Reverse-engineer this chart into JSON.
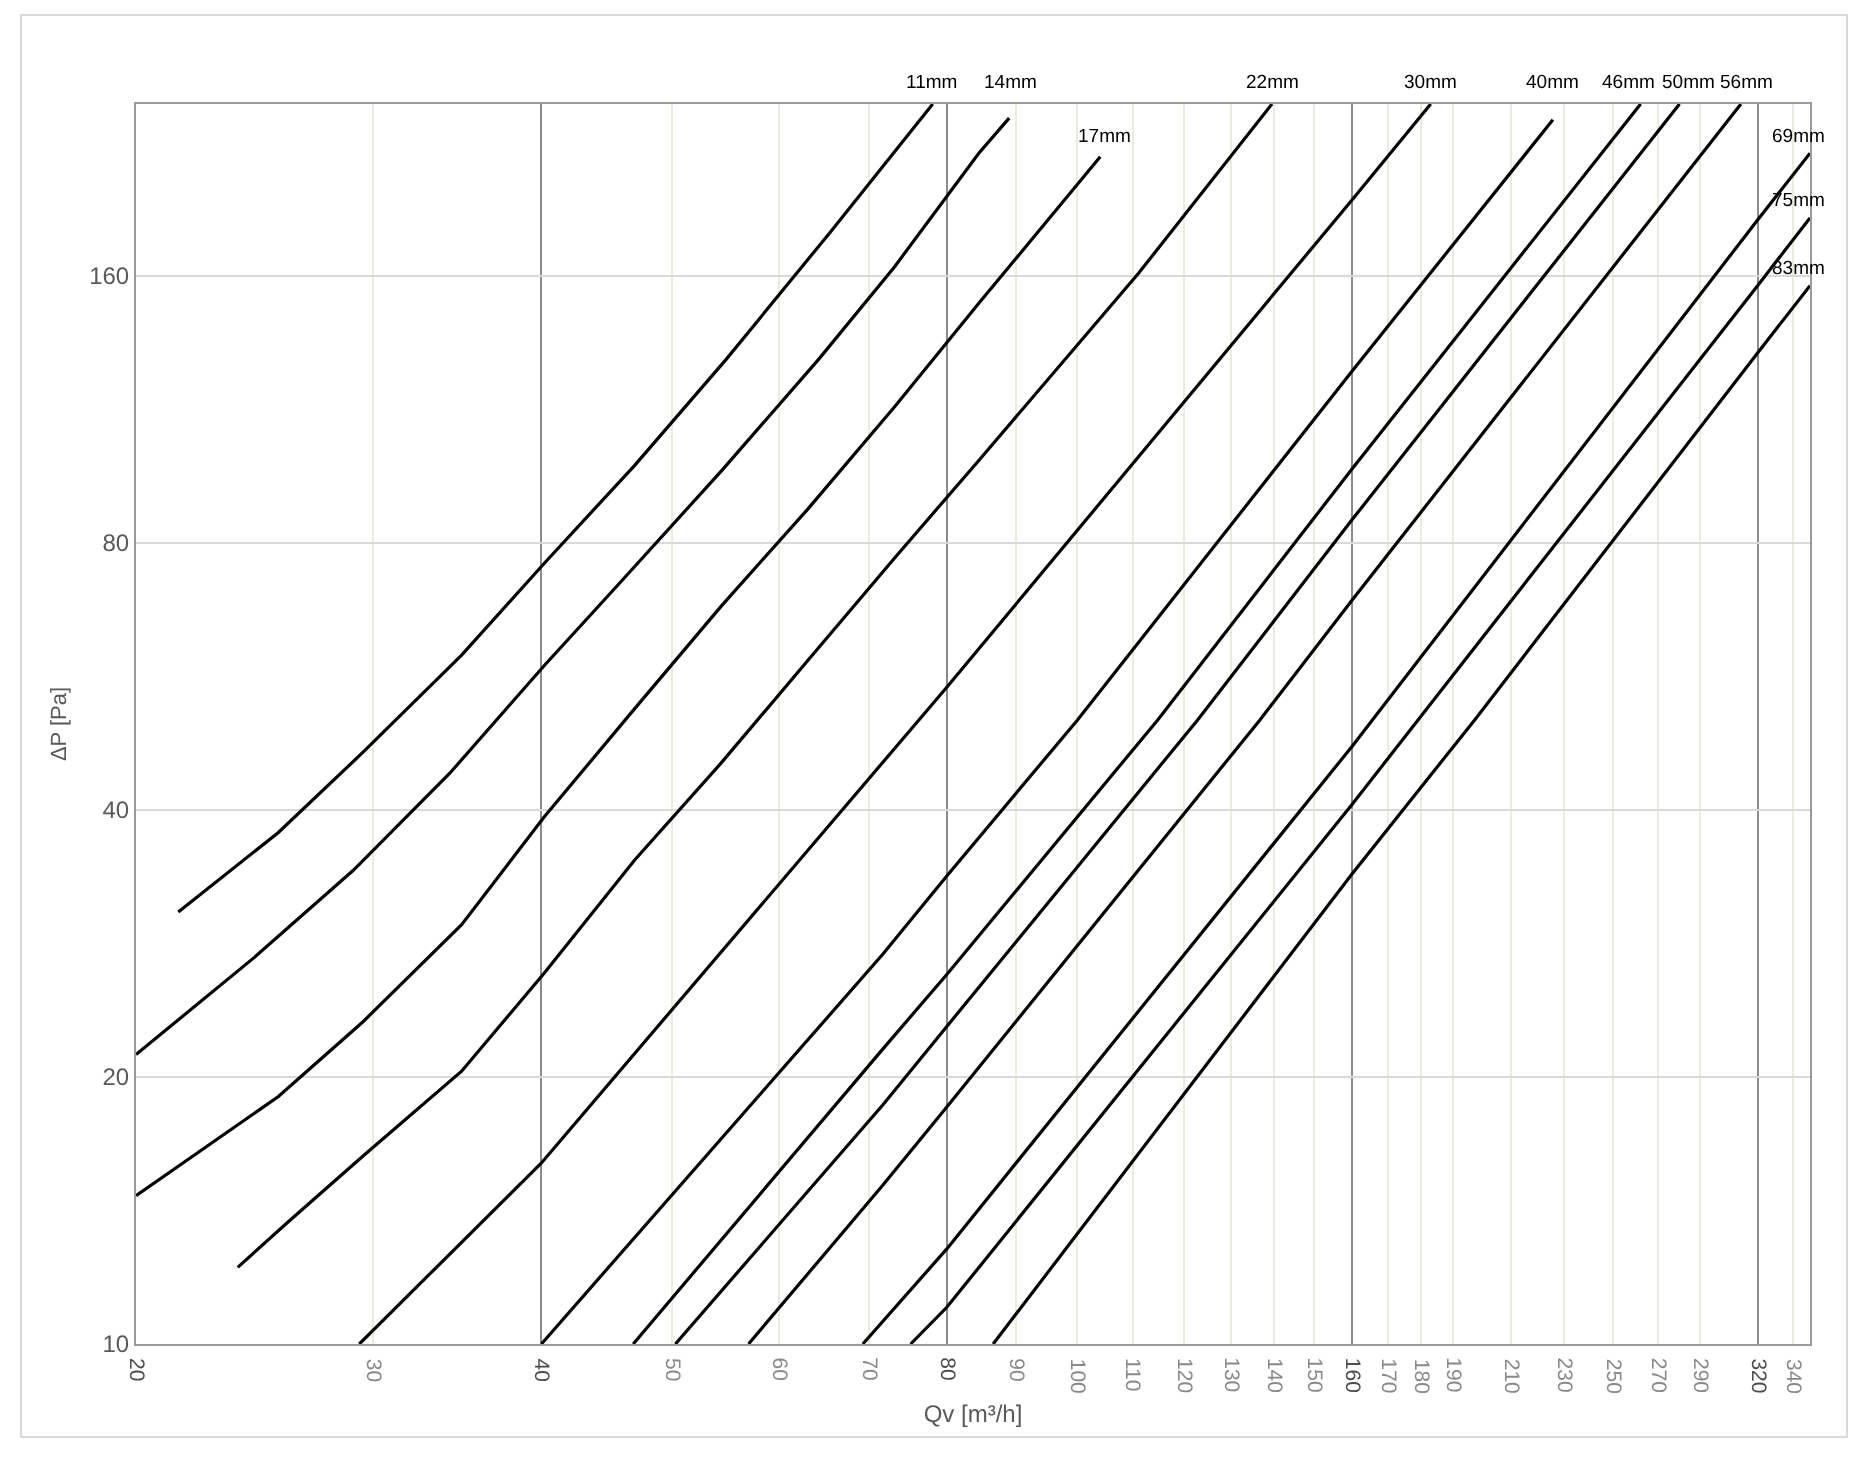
{
  "chart_data": {
    "type": "line",
    "xlabel": "Qv [m³/h]",
    "ylabel": "ΔP [Pa]",
    "log": "xy",
    "grid": true,
    "xlim": [
      20,
      350
    ],
    "ylim": [
      10,
      250
    ],
    "xticks": [
      20,
      30,
      40,
      50,
      60,
      70,
      80,
      90,
      100,
      110,
      120,
      130,
      140,
      150,
      160,
      170,
      180,
      190,
      210,
      230,
      250,
      270,
      290,
      320,
      340
    ],
    "yticks": [
      10,
      20,
      40,
      80,
      160
    ],
    "series": [
      {
        "name": "11mm",
        "color": "#000000",
        "x": [
          21.5,
          25.5,
          29.5,
          34.9,
          40.2,
          46.9,
          54.9,
          65.5,
          78.1
        ],
        "values": [
          30.7,
          37.7,
          46.5,
          59.8,
          75.9,
          97.8,
          129,
          179,
          250
        ]
      },
      {
        "name": "14mm",
        "color": "#000000",
        "x": [
          20,
          24.5,
          29,
          34.2,
          40.2,
          46,
          54.4,
          64.3,
          73.2,
          84.5,
          89
        ],
        "values": [
          21.2,
          27.3,
          34.2,
          44,
          58.2,
          72.8,
          96.4,
          129,
          164,
          220,
          241
        ]
      },
      {
        "name": "17mm",
        "color": "#000000",
        "x": [
          20,
          25.5,
          29.5,
          34.9,
          40.2,
          46.9,
          54.4,
          63.1,
          73.2,
          84.5,
          104
        ],
        "values": [
          14.7,
          19,
          23.1,
          29.7,
          39.3,
          52,
          67.9,
          87.4,
          114,
          149,
          218
        ]
      },
      {
        "name": "22mm",
        "color": "#000000",
        "x": [
          23.8,
          25.9,
          29.5,
          34.9,
          40.2,
          46.9,
          54.4,
          63.1,
          73.2,
          84.5,
          111,
          139.5
        ],
        "values": [
          12.2,
          13.7,
          16.3,
          20.3,
          26.2,
          35.1,
          45.2,
          59,
          77,
          99.1,
          161,
          250
        ]
      },
      {
        "name": "30mm",
        "color": "#000000",
        "x": [
          29.3,
          40,
          80,
          160,
          183
        ],
        "values": [
          10,
          16,
          55,
          195,
          250
        ]
      },
      {
        "name": "40mm",
        "color": "#000000",
        "x": [
          40,
          71.7,
          80,
          100,
          160,
          225.5
        ],
        "values": [
          10,
          27.5,
          33.7,
          50.5,
          125,
          240
        ]
      },
      {
        "name": "46mm",
        "color": "#000000",
        "x": [
          46.8,
          71.7,
          80,
          114.7,
          160,
          262
        ],
        "values": [
          10,
          21.5,
          26.1,
          50.5,
          97,
          250
        ]
      },
      {
        "name": "50mm",
        "color": "#000000",
        "x": [
          50.3,
          71.7,
          80,
          122.8,
          160,
          280
        ],
        "values": [
          10,
          18.6,
          22.8,
          50.5,
          85,
          250
        ]
      },
      {
        "name": "56mm",
        "color": "#000000",
        "x": [
          57,
          71.7,
          80,
          136.6,
          160,
          311
        ],
        "values": [
          10,
          15.1,
          18.5,
          50.5,
          69,
          250
        ]
      },
      {
        "name": "69mm",
        "color": "#000000",
        "x": [
          69.3,
          80,
          160,
          320,
          350
        ],
        "values": [
          10,
          12.8,
          47.2,
          185,
          220
        ]
      },
      {
        "name": "75mm",
        "color": "#000000",
        "x": [
          75.2,
          80,
          160,
          320,
          350
        ],
        "values": [
          10,
          11,
          40.6,
          156,
          186
        ]
      },
      {
        "name": "83mm",
        "color": "#000000",
        "x": [
          86.6,
          160,
          197.2,
          320,
          350
        ],
        "values": [
          10,
          33.9,
          50.5,
          131,
          156
        ]
      }
    ]
  }
}
